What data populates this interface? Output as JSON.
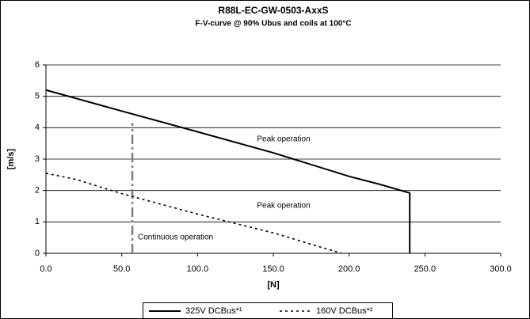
{
  "chart_data": {
    "type": "line",
    "title": "R88L-EC-GW-0503-AxxS",
    "subtitle": "F-V-curve @ 90% Ubus and coils at 100°C",
    "x_label": "[N]",
    "y_label": "[m/s]",
    "xlim": [
      0,
      300
    ],
    "xticks": [
      {
        "value": 0,
        "label": "0.0"
      },
      {
        "value": 50,
        "label": "50.0"
      },
      {
        "value": 100,
        "label": "100.0"
      },
      {
        "value": 150,
        "label": "150.0"
      },
      {
        "value": 200,
        "label": "200.0"
      },
      {
        "value": 250,
        "label": "250.0"
      },
      {
        "value": 300,
        "label": "300.0"
      }
    ],
    "ylim": [
      0,
      6
    ],
    "yticks": [
      0,
      1,
      2,
      3,
      4,
      5,
      6
    ],
    "grid": true,
    "series": [
      {
        "name": "325V DCBus*¹",
        "color": "#000000",
        "dash": "solid",
        "x": [
          0,
          50,
          100,
          150,
          200,
          220,
          240,
          240
        ],
        "values": [
          5.2,
          4.53,
          3.87,
          3.2,
          2.45,
          2.2,
          1.92,
          0
        ]
      },
      {
        "name": "160V DCBus*²",
        "color": "#000000",
        "dash": "dotted",
        "x": [
          0,
          20,
          50,
          100,
          150,
          195
        ],
        "values": [
          2.55,
          2.35,
          1.9,
          1.25,
          0.65,
          0
        ]
      }
    ],
    "continuous_limit": {
      "color": "#7f7f7f",
      "x": [
        57,
        57
      ],
      "values": [
        0,
        4.15
      ]
    },
    "annotations": [
      "Peak operation",
      "Peak operation",
      "Continuous operation"
    ]
  }
}
